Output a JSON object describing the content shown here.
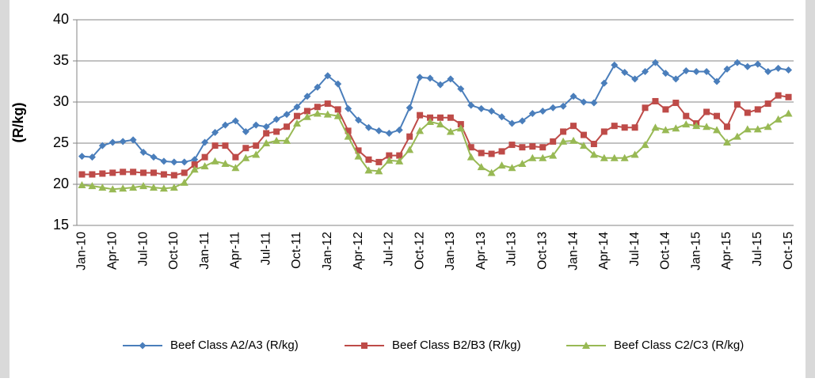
{
  "chart_data": {
    "type": "line",
    "ylabel": "(R/kg)",
    "categories": [
      "Jan-10",
      null,
      null,
      "Apr-10",
      null,
      null,
      "Jul-10",
      null,
      null,
      "Oct-10",
      null,
      null,
      "Jan-11",
      null,
      null,
      "Apr-11",
      null,
      null,
      "Jul-11",
      null,
      null,
      "Oct-11",
      null,
      null,
      "Jan-12",
      null,
      null,
      "Apr-12",
      null,
      null,
      "Jul-12",
      null,
      null,
      "Oct-12",
      null,
      null,
      "Jan-13",
      null,
      null,
      "Apr-13",
      null,
      null,
      "Jul-13",
      null,
      null,
      "Oct-13",
      null,
      null,
      "Jan-14",
      null,
      null,
      "Apr-14",
      null,
      null,
      "Jul-14",
      null,
      null,
      "Oct-14",
      null,
      null,
      "Jan-15",
      null,
      null,
      "Apr-15",
      null,
      null,
      "Jul-15",
      null,
      null,
      "Oct-15"
    ],
    "series": [
      {
        "name": "Beef Class A2/A3 (R/kg)",
        "color": "#4a7ebb",
        "marker": "diamond",
        "values": [
          23.4,
          23.3,
          24.7,
          25.1,
          25.2,
          25.4,
          23.9,
          23.3,
          22.8,
          22.7,
          22.7,
          23.0,
          25.1,
          26.3,
          27.2,
          27.7,
          26.4,
          27.2,
          27.0,
          27.9,
          28.5,
          29.4,
          30.7,
          31.8,
          33.2,
          32.2,
          29.2,
          27.8,
          26.9,
          26.5,
          26.2,
          26.6,
          29.3,
          33.0,
          32.9,
          32.1,
          32.8,
          31.6,
          29.6,
          29.2,
          28.9,
          28.2,
          27.4,
          27.7,
          28.6,
          28.9,
          29.3,
          29.5,
          30.7,
          30.0,
          29.9,
          32.3,
          34.5,
          33.6,
          32.8,
          33.7,
          34.8,
          33.5,
          32.8,
          33.8,
          33.7,
          33.7,
          32.5,
          34.0,
          34.8,
          34.3,
          34.6,
          33.7,
          34.1,
          33.9
        ]
      },
      {
        "name": "Beef Class B2/B3 (R/kg)",
        "color": "#be4b48",
        "marker": "square",
        "values": [
          21.2,
          21.2,
          21.3,
          21.4,
          21.5,
          21.5,
          21.4,
          21.4,
          21.2,
          21.1,
          21.4,
          22.4,
          23.3,
          24.7,
          24.7,
          23.3,
          24.4,
          24.7,
          26.2,
          26.4,
          27.0,
          28.3,
          28.9,
          29.4,
          29.8,
          29.1,
          26.5,
          24.1,
          23.0,
          22.7,
          23.5,
          23.5,
          25.8,
          28.4,
          28.1,
          28.1,
          28.1,
          27.3,
          24.5,
          23.8,
          23.7,
          24.0,
          24.8,
          24.5,
          24.6,
          24.5,
          25.2,
          26.4,
          27.1,
          26.0,
          24.9,
          26.4,
          27.1,
          26.9,
          26.9,
          29.3,
          30.1,
          29.1,
          29.9,
          28.3,
          27.4,
          28.8,
          28.3,
          27.0,
          29.7,
          28.7,
          29.1,
          29.8,
          30.8,
          30.6
        ]
      },
      {
        "name": "Beef Class C2/C3 (R/kg)",
        "color": "#98b954",
        "marker": "triangle",
        "values": [
          19.9,
          19.8,
          19.6,
          19.4,
          19.5,
          19.6,
          19.8,
          19.6,
          19.5,
          19.6,
          20.2,
          21.8,
          22.2,
          22.8,
          22.5,
          22.0,
          23.2,
          23.6,
          25.0,
          25.3,
          25.3,
          27.4,
          28.2,
          28.6,
          28.5,
          28.3,
          25.8,
          23.4,
          21.7,
          21.6,
          22.9,
          22.8,
          24.2,
          26.5,
          27.6,
          27.3,
          26.4,
          26.8,
          23.3,
          22.1,
          21.4,
          22.3,
          22.0,
          22.5,
          23.2,
          23.2,
          23.5,
          25.2,
          25.3,
          24.7,
          23.6,
          23.2,
          23.2,
          23.2,
          23.6,
          24.8,
          26.9,
          26.6,
          26.8,
          27.3,
          27.1,
          27.0,
          26.6,
          25.1,
          25.8,
          26.7,
          26.7,
          27.0,
          27.9,
          28.6
        ]
      }
    ],
    "ylim": [
      15,
      40
    ],
    "yticks": [
      15,
      20,
      25,
      30,
      35,
      40
    ],
    "grid": true
  }
}
